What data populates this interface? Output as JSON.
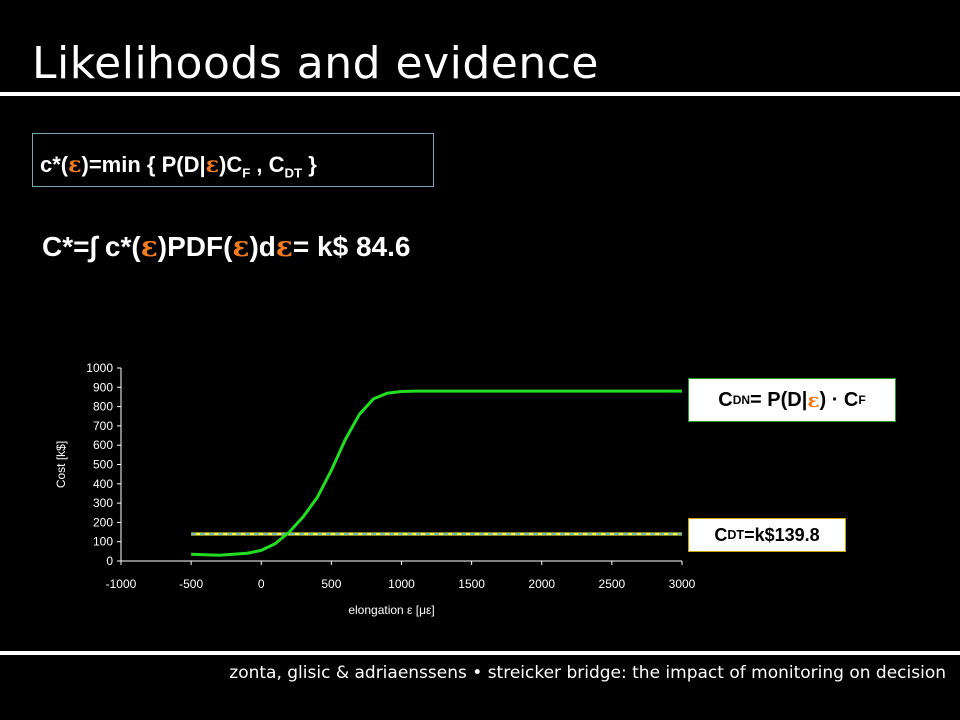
{
  "slide": {
    "title": "Likelihoods and evidence",
    "footer": "zonta, glisic & adriaenssens • streicker bridge: the impact of monitoring on decision"
  },
  "formulas": {
    "cstar_eps_prefix": "c*(",
    "eps": "ε",
    "cstar_eps_mid1": ")=min { P(D|",
    "cstar_eps_mid2": ")C",
    "sub_f": "F",
    "cstar_eps_mid3": " , C",
    "sub_dt": "DT",
    "cstar_eps_end": " }",
    "cstar_part1": "C*=∫ c*(",
    "cstar_part2": ")PDF(",
    "cstar_part3": ")d",
    "cstar_part4": "=   k$ 84.6"
  },
  "labels": {
    "cdn_c": "C",
    "cdn_sub": "DN",
    "cdn_mid": " = P(D|",
    "cdn_end": ") · C",
    "cdn_sub_f": "F",
    "cdt_c": "C",
    "cdt_sub": "DT",
    "cdt_value": "=k$139.8"
  },
  "colors": {
    "cdn_curve": "#22dd22",
    "cdt_line": "#ffff44",
    "cdt_dash": "#4aa3d8",
    "accent_eps": "#f07a1e"
  },
  "chart_data": {
    "type": "line",
    "xlabel": "elongation ε [με]",
    "ylabel": "Cost [k$]",
    "xlim": [
      -1000,
      3000
    ],
    "ylim": [
      0,
      1000
    ],
    "x_ticks": [
      -1000,
      -500,
      0,
      500,
      1000,
      1500,
      2000,
      2500,
      3000
    ],
    "y_ticks": [
      0,
      100,
      200,
      300,
      400,
      500,
      600,
      700,
      800,
      900,
      1000
    ],
    "grid": false,
    "series": [
      {
        "name": "C DN",
        "x": [
          -500,
          -300,
          -100,
          0,
          100,
          200,
          300,
          400,
          500,
          600,
          700,
          800,
          900,
          1000,
          1100,
          1200,
          1500,
          2000,
          2500,
          3000
        ],
        "values": [
          35,
          30,
          40,
          55,
          90,
          150,
          230,
          330,
          470,
          630,
          760,
          840,
          870,
          878,
          880,
          880,
          880,
          880,
          880,
          880
        ]
      },
      {
        "name": "C DT",
        "x": [
          -500,
          3000
        ],
        "values": [
          139.8,
          139.8
        ]
      }
    ]
  }
}
